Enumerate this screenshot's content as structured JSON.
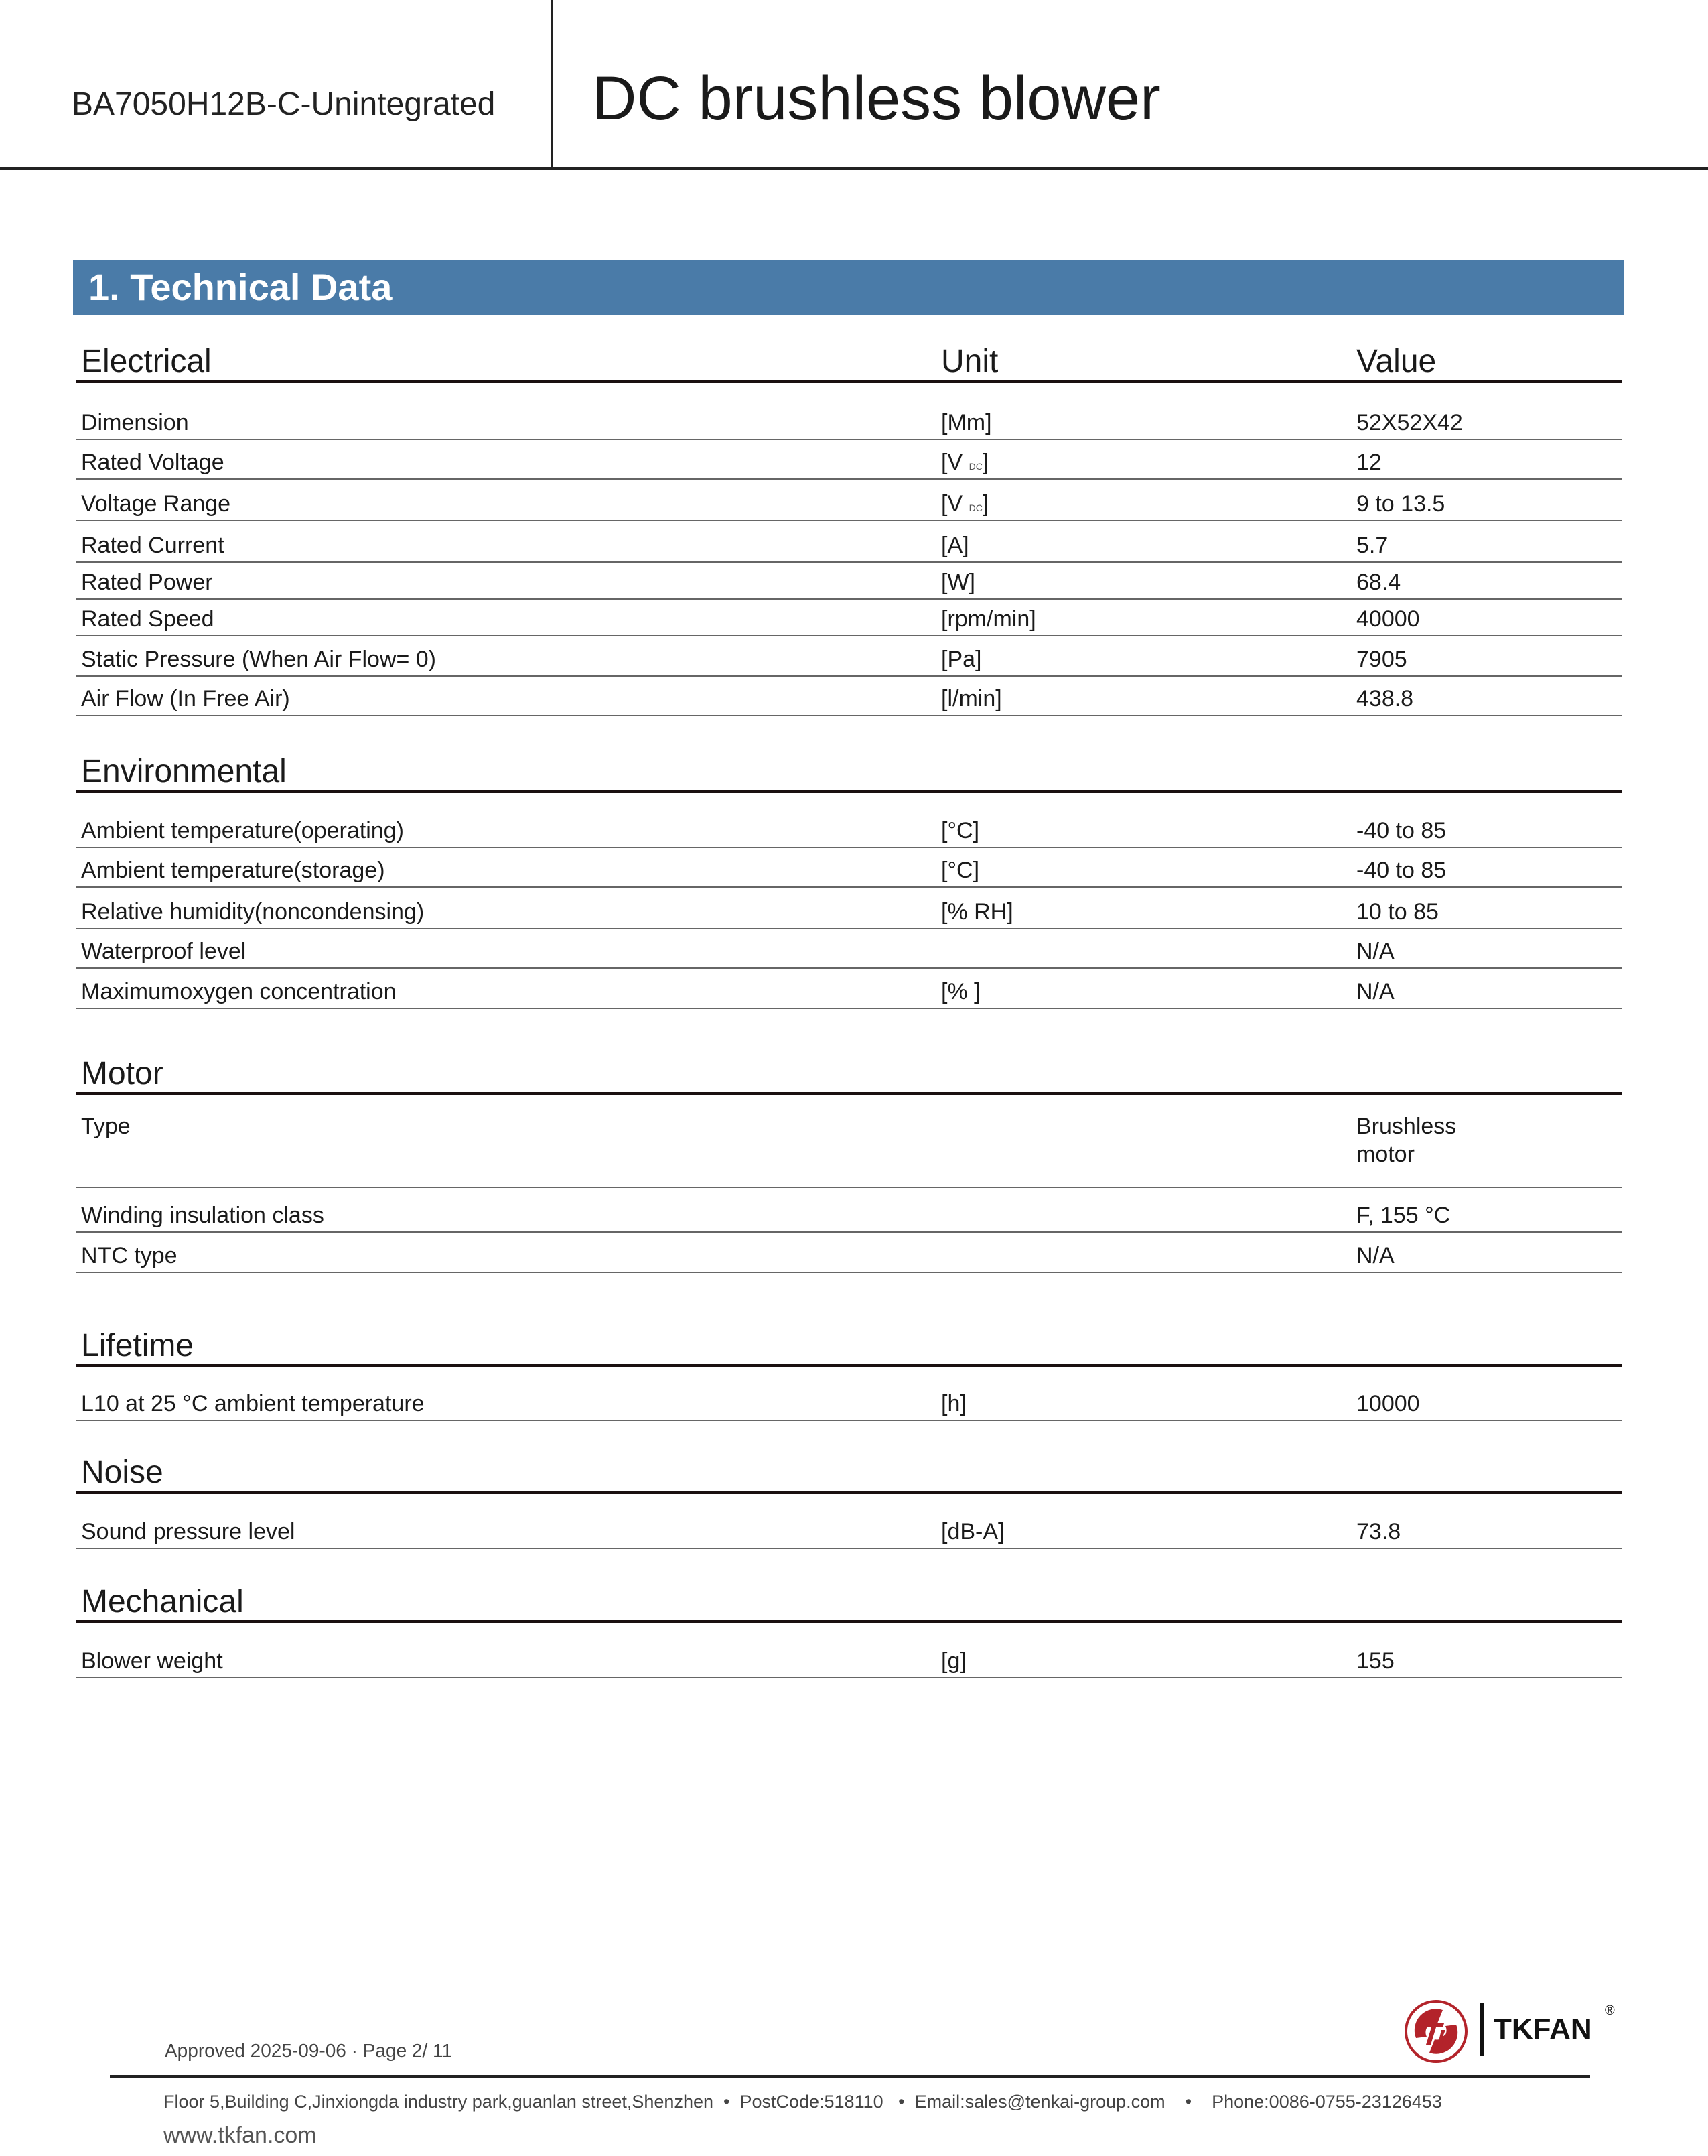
{
  "header": {
    "model": "BA7050H12B-C-Unintegrated",
    "title": "DC brushless blower"
  },
  "section_bar": "1. Technical Data",
  "columns": {
    "unit": "Unit",
    "value": "Value"
  },
  "sections": [
    {
      "title": "Electrical",
      "rows": [
        {
          "label": "Dimension",
          "unit": "[Mm]",
          "value": "52X52X42"
        },
        {
          "label": "Rated Voltage",
          "unit": "[V",
          "unit_sub": "DC",
          "unit_end": "]",
          "value": "12"
        },
        {
          "label": "Voltage Range",
          "unit": "[V",
          "unit_sub": "DC",
          "unit_end": "]",
          "value": "9 to 13.5"
        },
        {
          "label": "Rated Current",
          "unit": "[A]",
          "value": "5.7"
        },
        {
          "label": "Rated Power",
          "unit": "[W]",
          "value": "68.4"
        },
        {
          "label": "Rated Speed",
          "unit": "[rpm/min]",
          "value": "40000"
        },
        {
          "label": "Static Pressure (When Air Flow= 0)",
          "unit": "[Pa]",
          "value": "7905"
        },
        {
          "label": "Air Flow (In Free Air)",
          "unit": "[l/min]",
          "value": "438.8"
        }
      ]
    },
    {
      "title": "Environmental",
      "rows": [
        {
          "label": "Ambient temperature(operating)",
          "unit": "[°C]",
          "value": "-40 to 85"
        },
        {
          "label": "Ambient temperature(storage)",
          "unit": "[°C]",
          "value": "-40 to 85"
        },
        {
          "label": "Relative humidity(noncondensing)",
          "unit": "[% RH]",
          "value": "10 to 85"
        },
        {
          "label": "Waterproof level",
          "unit": "",
          "value": "N/A"
        },
        {
          "label": "Maximumoxygen concentration",
          "unit": "[% ]",
          "value": "N/A"
        }
      ]
    },
    {
      "title": "Motor",
      "rows": [
        {
          "label": "Type",
          "unit": "",
          "value": "Brushless motor"
        },
        {
          "label": "Winding insulation class",
          "unit": "",
          "value": "F, 155 °C"
        },
        {
          "label": "NTC type",
          "unit": "",
          "value": "N/A"
        }
      ]
    },
    {
      "title": "Lifetime",
      "rows": [
        {
          "label": "L10 at 25 °C ambient temperature",
          "unit": "[h]",
          "value": "10000"
        }
      ]
    },
    {
      "title": "Noise",
      "rows": [
        {
          "label": "Sound pressure level",
          "unit": "[dB-A]",
          "value": "73.8"
        }
      ]
    },
    {
      "title": "Mechanical",
      "rows": [
        {
          "label": "Blower weight",
          "unit": "[g]",
          "value": "155"
        }
      ]
    }
  ],
  "footer": {
    "approved": "Approved 2025-09-06 · Page 2/ 11",
    "address": "Floor 5,Building C,Jinxiongda industry park,guanlan street,Shenzhen  •  PostCode:518110   •  Email:sales@tenkai-group.com    •    Phone:0086-0755-23126453",
    "website": "www.tkfan.com",
    "brand": "TKFAN",
    "registered": "®",
    "brand_color": "#b3232a",
    "accent_color": "#4a7ba8"
  }
}
